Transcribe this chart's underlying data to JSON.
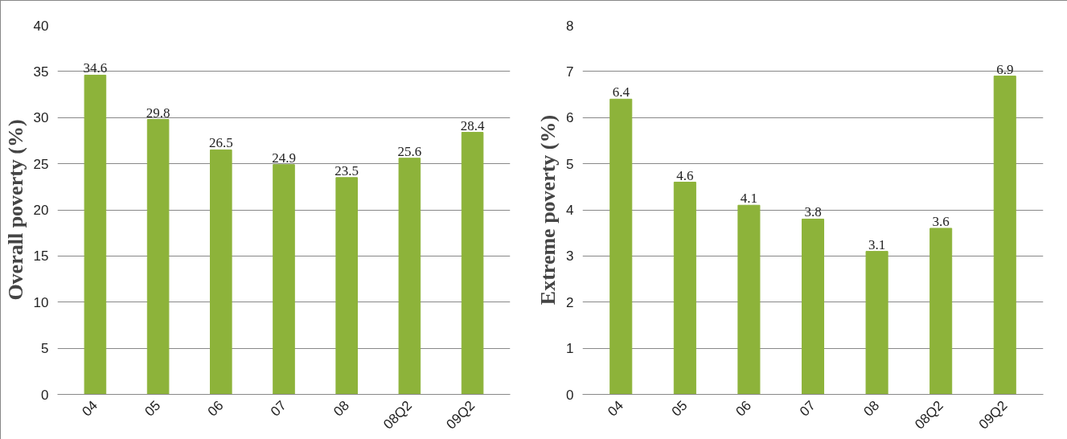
{
  "chart_data": [
    {
      "type": "bar",
      "ylabel": "Overall poverty (%)",
      "categories": [
        "04",
        "05",
        "06",
        "07",
        "08",
        "08Q2",
        "09Q2"
      ],
      "values": [
        34.6,
        29.8,
        26.5,
        24.9,
        23.5,
        25.6,
        28.4
      ],
      "color": "#8db33a",
      "ylim": [
        0,
        40
      ],
      "yticks": [
        0,
        5,
        10,
        15,
        20,
        25,
        30,
        35,
        40
      ],
      "grid": "y",
      "data_labels": true
    },
    {
      "type": "bar",
      "ylabel": "Extreme poverty (%)",
      "categories": [
        "04",
        "05",
        "06",
        "07",
        "08",
        "08Q2",
        "09Q2"
      ],
      "values": [
        6.4,
        4.6,
        4.1,
        3.8,
        3.1,
        3.6,
        6.9
      ],
      "color": "#8db33a",
      "ylim": [
        0,
        8
      ],
      "yticks": [
        0,
        1,
        2,
        3,
        4,
        5,
        6,
        7,
        8
      ],
      "grid": "y",
      "data_labels": true
    }
  ]
}
